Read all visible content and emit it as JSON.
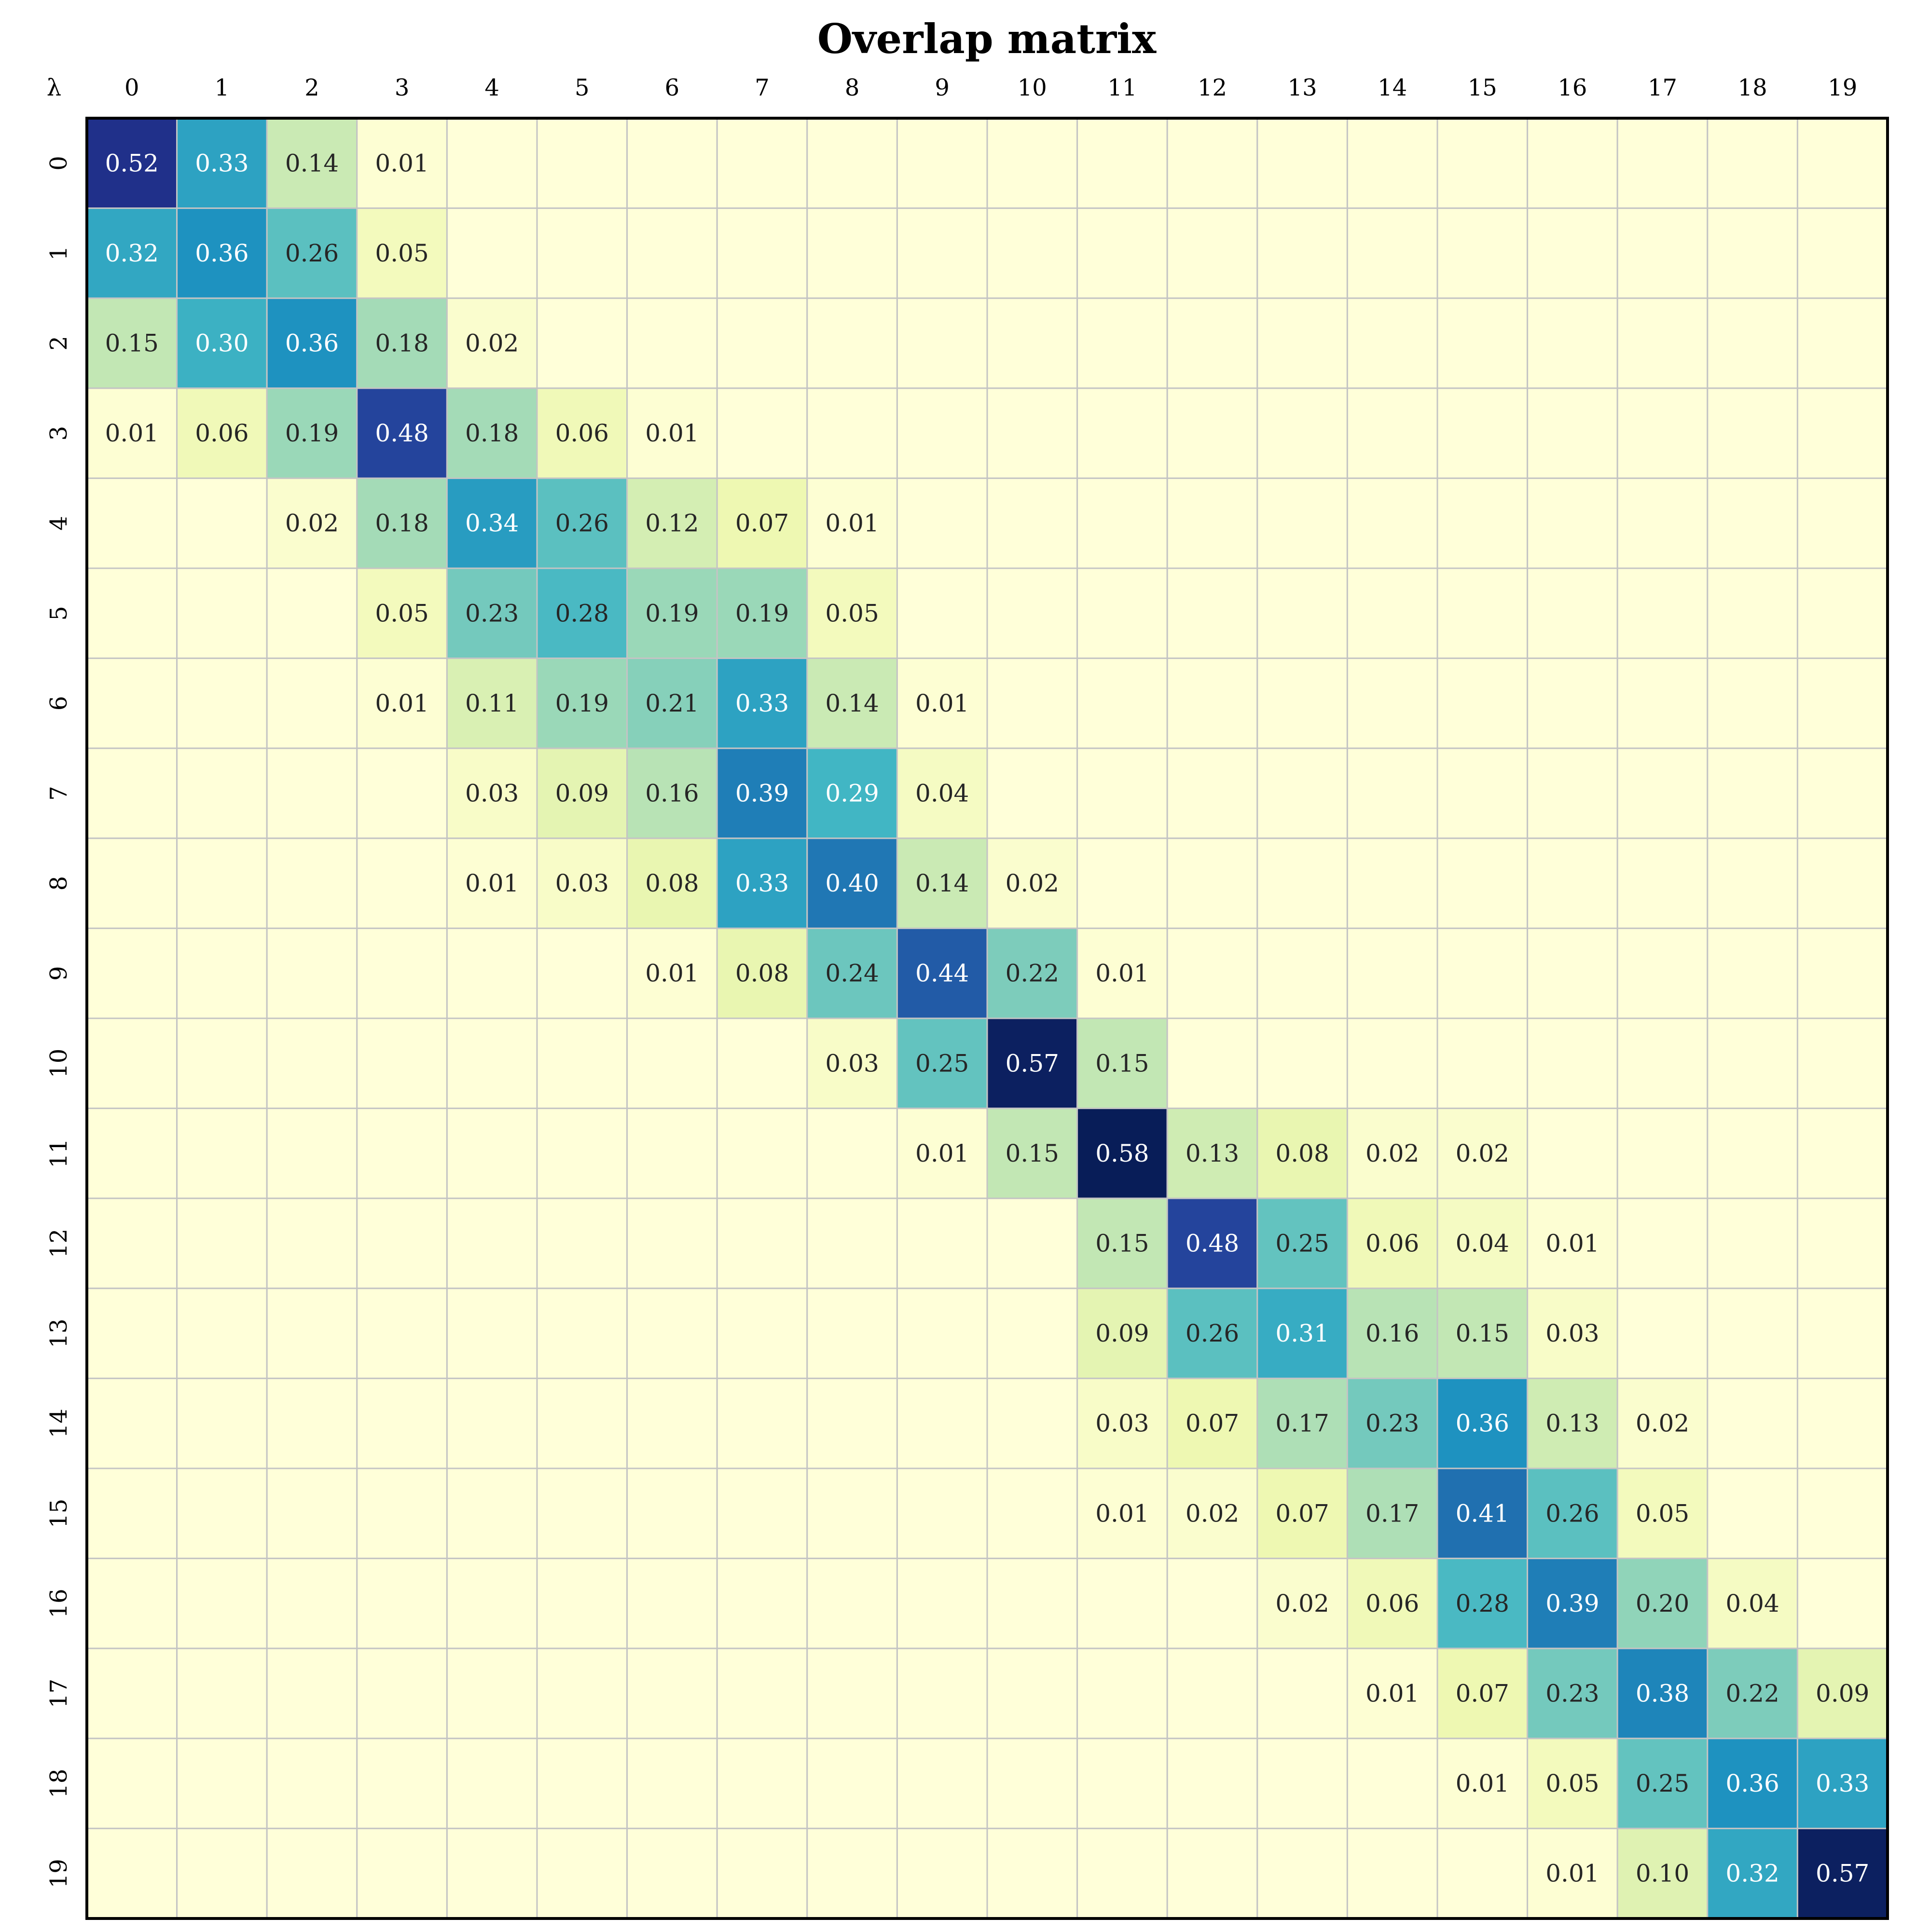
{
  "chart_data": {
    "type": "heatmap",
    "title": "Overlap matrix",
    "corner_label": "λ",
    "x_labels": [
      "0",
      "1",
      "2",
      "3",
      "4",
      "5",
      "6",
      "7",
      "8",
      "9",
      "10",
      "11",
      "12",
      "13",
      "14",
      "15",
      "16",
      "17",
      "18",
      "19"
    ],
    "y_labels": [
      "0",
      "1",
      "2",
      "3",
      "4",
      "5",
      "6",
      "7",
      "8",
      "9",
      "10",
      "11",
      "12",
      "13",
      "14",
      "15",
      "16",
      "17",
      "18",
      "19"
    ],
    "colormap": "YlGnBu",
    "vmin": 0,
    "vmax": 0.58,
    "annotation_format": "two-decimals, shown when >= 0.01",
    "values": [
      [
        0.52,
        0.33,
        0.14,
        0.01,
        0,
        0,
        0,
        0,
        0,
        0,
        0,
        0,
        0,
        0,
        0,
        0,
        0,
        0,
        0,
        0
      ],
      [
        0.32,
        0.36,
        0.26,
        0.05,
        0,
        0,
        0,
        0,
        0,
        0,
        0,
        0,
        0,
        0,
        0,
        0,
        0,
        0,
        0,
        0
      ],
      [
        0.15,
        0.3,
        0.36,
        0.18,
        0.02,
        0,
        0,
        0,
        0,
        0,
        0,
        0,
        0,
        0,
        0,
        0,
        0,
        0,
        0,
        0
      ],
      [
        0.01,
        0.06,
        0.19,
        0.48,
        0.18,
        0.06,
        0.01,
        0,
        0,
        0,
        0,
        0,
        0,
        0,
        0,
        0,
        0,
        0,
        0,
        0
      ],
      [
        0,
        0,
        0.02,
        0.18,
        0.34,
        0.26,
        0.12,
        0.07,
        0.01,
        0,
        0,
        0,
        0,
        0,
        0,
        0,
        0,
        0,
        0,
        0
      ],
      [
        0,
        0,
        0,
        0.05,
        0.23,
        0.28,
        0.19,
        0.19,
        0.05,
        0,
        0,
        0,
        0,
        0,
        0,
        0,
        0,
        0,
        0,
        0
      ],
      [
        0,
        0,
        0,
        0.01,
        0.11,
        0.19,
        0.21,
        0.33,
        0.14,
        0.01,
        0,
        0,
        0,
        0,
        0,
        0,
        0,
        0,
        0,
        0
      ],
      [
        0,
        0,
        0,
        0,
        0.03,
        0.09,
        0.16,
        0.39,
        0.29,
        0.04,
        0,
        0,
        0,
        0,
        0,
        0,
        0,
        0,
        0,
        0
      ],
      [
        0,
        0,
        0,
        0,
        0.01,
        0.03,
        0.08,
        0.33,
        0.4,
        0.14,
        0.02,
        0,
        0,
        0,
        0,
        0,
        0,
        0,
        0,
        0
      ],
      [
        0,
        0,
        0,
        0,
        0,
        0,
        0.01,
        0.08,
        0.24,
        0.44,
        0.22,
        0.01,
        0,
        0,
        0,
        0,
        0,
        0,
        0,
        0
      ],
      [
        0,
        0,
        0,
        0,
        0,
        0,
        0,
        0,
        0.03,
        0.25,
        0.57,
        0.15,
        0,
        0,
        0,
        0,
        0,
        0,
        0,
        0
      ],
      [
        0,
        0,
        0,
        0,
        0,
        0,
        0,
        0,
        0,
        0.01,
        0.15,
        0.58,
        0.13,
        0.08,
        0.02,
        0.02,
        0,
        0,
        0,
        0
      ],
      [
        0,
        0,
        0,
        0,
        0,
        0,
        0,
        0,
        0,
        0,
        0,
        0.15,
        0.48,
        0.25,
        0.06,
        0.04,
        0.01,
        0,
        0,
        0
      ],
      [
        0,
        0,
        0,
        0,
        0,
        0,
        0,
        0,
        0,
        0,
        0,
        0.09,
        0.26,
        0.31,
        0.16,
        0.15,
        0.03,
        0,
        0,
        0
      ],
      [
        0,
        0,
        0,
        0,
        0,
        0,
        0,
        0,
        0,
        0,
        0,
        0.03,
        0.07,
        0.17,
        0.23,
        0.36,
        0.13,
        0.02,
        0,
        0
      ],
      [
        0,
        0,
        0,
        0,
        0,
        0,
        0,
        0,
        0,
        0,
        0,
        0.01,
        0.02,
        0.07,
        0.17,
        0.41,
        0.26,
        0.05,
        0,
        0
      ],
      [
        0,
        0,
        0,
        0,
        0,
        0,
        0,
        0,
        0,
        0,
        0,
        0,
        0,
        0.02,
        0.06,
        0.28,
        0.39,
        0.2,
        0.04,
        0
      ],
      [
        0,
        0,
        0,
        0,
        0,
        0,
        0,
        0,
        0,
        0,
        0,
        0,
        0,
        0,
        0.01,
        0.07,
        0.23,
        0.38,
        0.22,
        0.09
      ],
      [
        0,
        0,
        0,
        0,
        0,
        0,
        0,
        0,
        0,
        0,
        0,
        0,
        0,
        0,
        0,
        0.01,
        0.05,
        0.25,
        0.36,
        0.33
      ],
      [
        0,
        0,
        0,
        0,
        0,
        0,
        0,
        0,
        0,
        0,
        0,
        0,
        0,
        0,
        0,
        0,
        0.01,
        0.1,
        0.32,
        0.57
      ]
    ],
    "grid": true,
    "legend": "none"
  }
}
